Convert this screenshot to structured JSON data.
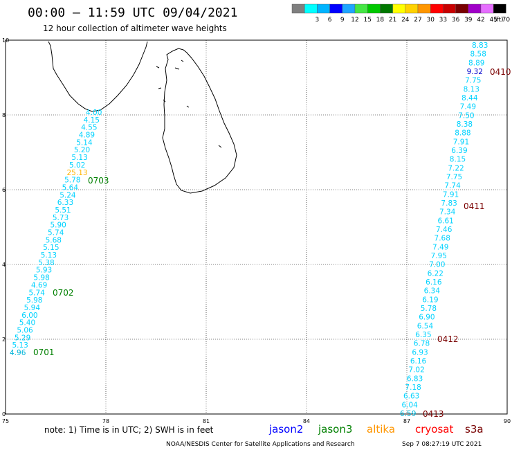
{
  "header": {
    "title": "00:00 – 11:59 UTC 09/04/2021",
    "subtitle": "12 hour collection of altimeter wave heights"
  },
  "legend": {
    "swatches": [
      {
        "color": "#7f7f7f",
        "label": ""
      },
      {
        "color": "#00ffff",
        "label": "3"
      },
      {
        "color": "#00b4ff",
        "label": "6"
      },
      {
        "color": "#0000ff",
        "label": "9"
      },
      {
        "color": "#1fa5ff",
        "label": "12"
      },
      {
        "color": "#45e645",
        "label": "15"
      },
      {
        "color": "#00c800",
        "label": "18"
      },
      {
        "color": "#007800",
        "label": "21"
      },
      {
        "color": "#ffff00",
        "label": "24"
      },
      {
        "color": "#ffd200",
        "label": "27"
      },
      {
        "color": "#ff9600",
        "label": "30"
      },
      {
        "color": "#ff0000",
        "label": "33"
      },
      {
        "color": "#c80000",
        "label": "36"
      },
      {
        "color": "#780000",
        "label": "39"
      },
      {
        "color": "#a000c8",
        "label": "42"
      },
      {
        "color": "#e66eff",
        "label": "45"
      },
      {
        "color": "#000000",
        "label": "70"
      }
    ],
    "unit": "(ft)"
  },
  "axes": {
    "x_ticks": [
      "75",
      "78",
      "81",
      "84",
      "87",
      "90"
    ],
    "y_ticks": [
      "0",
      "2",
      "4",
      "6",
      "8",
      "10"
    ],
    "lon_range": [
      75,
      90
    ],
    "lat_range": [
      0,
      10
    ]
  },
  "tracks": {
    "left": {
      "readings": [
        {
          "value": "4.96",
          "color": "#00b4d8"
        },
        {
          "value": "5.13",
          "color": "#00d2ff"
        },
        {
          "value": "5.29",
          "color": "#00d2ff"
        },
        {
          "value": "5.06",
          "color": "#00d2ff"
        },
        {
          "value": "5.40",
          "color": "#00d2ff"
        },
        {
          "value": "6.00",
          "color": "#00d2ff"
        },
        {
          "value": "5.94",
          "color": "#00d2ff"
        },
        {
          "value": "5.98",
          "color": "#00d2ff"
        },
        {
          "value": "5.74",
          "color": "#00d2ff"
        },
        {
          "value": "4.69",
          "color": "#00d2ff"
        },
        {
          "value": "5.98",
          "color": "#00d2ff"
        },
        {
          "value": "5.93",
          "color": "#00d2ff"
        },
        {
          "value": "5.38",
          "color": "#00d2ff"
        },
        {
          "value": "5.13",
          "color": "#00d2ff"
        },
        {
          "value": "5.15",
          "color": "#00d2ff"
        },
        {
          "value": "5.68",
          "color": "#00d2ff"
        },
        {
          "value": "5.74",
          "color": "#00d2ff"
        },
        {
          "value": "5.90",
          "color": "#00d2ff"
        },
        {
          "value": "5.73",
          "color": "#00d2ff"
        },
        {
          "value": "5.51",
          "color": "#00d2ff"
        },
        {
          "value": "6.33",
          "color": "#00d2ff"
        },
        {
          "value": "5.24",
          "color": "#00d2ff"
        },
        {
          "value": "5.64",
          "color": "#00d2ff"
        },
        {
          "value": "5.78",
          "color": "#00d2ff"
        },
        {
          "value": "25.13",
          "color": "#ffb400"
        },
        {
          "value": "5.02",
          "color": "#00d2ff"
        },
        {
          "value": "5.13",
          "color": "#00d2ff"
        },
        {
          "value": "5.20",
          "color": "#00d2ff"
        },
        {
          "value": "5.14",
          "color": "#00d2ff"
        },
        {
          "value": "4.89",
          "color": "#00d2ff"
        },
        {
          "value": "4.55",
          "color": "#00d2ff"
        },
        {
          "value": "4.15",
          "color": "#00d2ff"
        },
        {
          "value": "4.00",
          "color": "#00d2ff"
        }
      ],
      "times": [
        {
          "value": "0701",
          "color": "#008000"
        },
        {
          "value": "0702",
          "color": "#008000"
        },
        {
          "value": "0703",
          "color": "#008000"
        }
      ]
    },
    "right": {
      "readings": [
        {
          "value": "6.59",
          "color": "#00b4d8"
        },
        {
          "value": "6.04",
          "color": "#00d2ff"
        },
        {
          "value": "6.63",
          "color": "#00d2ff"
        },
        {
          "value": "7.18",
          "color": "#00d2ff"
        },
        {
          "value": "6.83",
          "color": "#00d2ff"
        },
        {
          "value": "7.02",
          "color": "#00d2ff"
        },
        {
          "value": "6.16",
          "color": "#00d2ff"
        },
        {
          "value": "6.93",
          "color": "#00d2ff"
        },
        {
          "value": "6.78",
          "color": "#00d2ff"
        },
        {
          "value": "6.35",
          "color": "#00d2ff"
        },
        {
          "value": "6.54",
          "color": "#00d2ff"
        },
        {
          "value": "6.90",
          "color": "#00d2ff"
        },
        {
          "value": "5.78",
          "color": "#00d2ff"
        },
        {
          "value": "6.19",
          "color": "#00d2ff"
        },
        {
          "value": "6.34",
          "color": "#00d2ff"
        },
        {
          "value": "6.16",
          "color": "#00d2ff"
        },
        {
          "value": "6.22",
          "color": "#00d2ff"
        },
        {
          "value": "7.00",
          "color": "#00d2ff"
        },
        {
          "value": "7.95",
          "color": "#00d2ff"
        },
        {
          "value": "7.49",
          "color": "#00d2ff"
        },
        {
          "value": "7.68",
          "color": "#00d2ff"
        },
        {
          "value": "7.46",
          "color": "#00d2ff"
        },
        {
          "value": "6.61",
          "color": "#00d2ff"
        },
        {
          "value": "7.34",
          "color": "#00d2ff"
        },
        {
          "value": "7.83",
          "color": "#00d2ff"
        },
        {
          "value": "7.91",
          "color": "#00d2ff"
        },
        {
          "value": "7.74",
          "color": "#00d2ff"
        },
        {
          "value": "7.75",
          "color": "#00d2ff"
        },
        {
          "value": "7.22",
          "color": "#00d2ff"
        },
        {
          "value": "8.15",
          "color": "#00d2ff"
        },
        {
          "value": "6.39",
          "color": "#00d2ff"
        },
        {
          "value": "7.91",
          "color": "#00d2ff"
        },
        {
          "value": "8.88",
          "color": "#00d2ff"
        },
        {
          "value": "8.38",
          "color": "#00d2ff"
        },
        {
          "value": "7.50",
          "color": "#00d2ff"
        },
        {
          "value": "7.49",
          "color": "#00d2ff"
        },
        {
          "value": "8.44",
          "color": "#00d2ff"
        },
        {
          "value": "8.13",
          "color": "#00d2ff"
        },
        {
          "value": "7.75",
          "color": "#00d2ff"
        },
        {
          "value": "9.32",
          "color": "#0000cc"
        },
        {
          "value": "8.89",
          "color": "#00d2ff"
        },
        {
          "value": "8.58",
          "color": "#00d2ff"
        },
        {
          "value": "8.83",
          "color": "#00d2ff"
        }
      ],
      "times": [
        {
          "value": "0413",
          "color": "#7a0000"
        },
        {
          "value": "0412",
          "color": "#7a0000"
        },
        {
          "value": "0411",
          "color": "#7a0000"
        },
        {
          "value": "0410",
          "color": "#7a0000"
        }
      ]
    }
  },
  "footer": {
    "note": "note: 1) Time is in UTC; 2) SWH is in feet",
    "satellites": [
      {
        "name": "jason2",
        "color": "#0000ff"
      },
      {
        "name": "jason3",
        "color": "#008000"
      },
      {
        "name": "altika",
        "color": "#ff9600"
      },
      {
        "name": "cryosat",
        "color": "#ff0000"
      },
      {
        "name": "s3a",
        "color": "#780000"
      }
    ],
    "credit": "NOAA/NESDIS Center for Satellite Applications and Research",
    "timestamp": "Sep  7 08:27:19 UTC 2021"
  }
}
